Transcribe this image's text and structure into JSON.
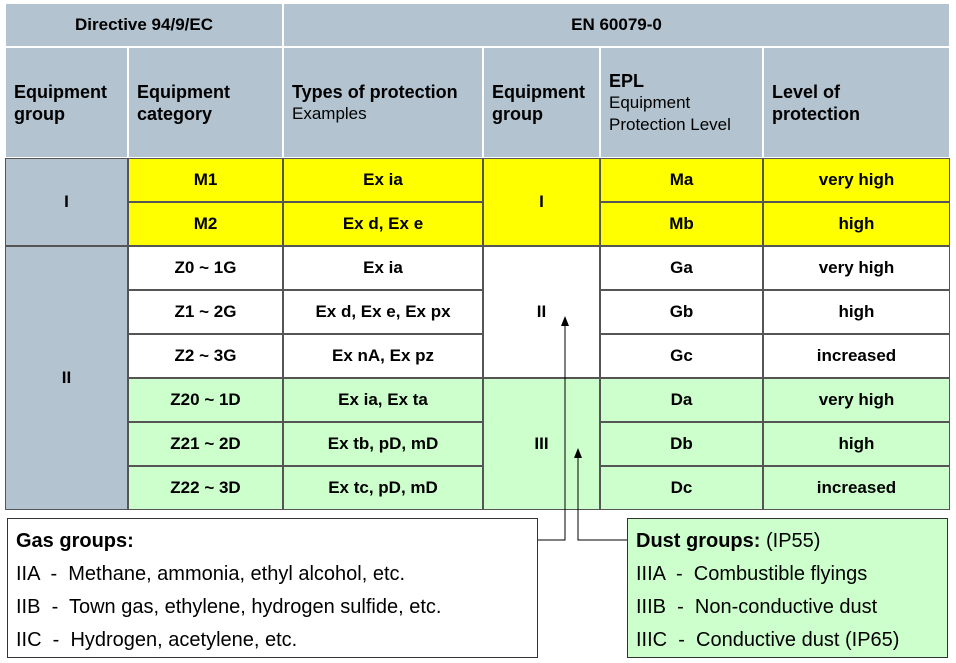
{
  "table": {
    "header_groups": [
      "Directive 94/9/EC",
      "EN 60079-0"
    ],
    "columns": [
      {
        "title": "Equipment group"
      },
      {
        "title": "Equipment category"
      },
      {
        "title": "Types of protection",
        "subtitle": "Examples"
      },
      {
        "title": "Equipment group"
      },
      {
        "title": "EPL",
        "subtitle": "Equipment Protection Level"
      },
      {
        "title": "Level of protection"
      }
    ],
    "equipment_groups": [
      "I",
      "II"
    ],
    "epl_groups": [
      "I",
      "II",
      "III"
    ],
    "rows": [
      [
        "M1",
        "Ex ia",
        "Ma",
        "very high"
      ],
      [
        "M2",
        "Ex d, Ex e",
        "Mb",
        "high"
      ],
      [
        "Z0 ~ 1G",
        "Ex ia",
        "Ga",
        "very high"
      ],
      [
        "Z1 ~ 2G",
        "Ex d, Ex e, Ex px",
        "Gb",
        "high"
      ],
      [
        "Z2 ~ 3G",
        "Ex nA, Ex pz",
        "Gc",
        "increased"
      ],
      [
        "Z20 ~ 1D",
        "Ex ia, Ex ta",
        "Da",
        "very high"
      ],
      [
        "Z21 ~ 2D",
        "Ex tb, pD, mD",
        "Db",
        "high"
      ],
      [
        "Z22 ~ 3D",
        "Ex tc, pD, mD",
        "Dc",
        "increased"
      ]
    ]
  },
  "gas_groups": {
    "title": "Gas groups:",
    "items": [
      "IIA  -  Methane, ammonia, ethyl alcohol, etc.",
      "IIB  -  Town gas, ethylene, hydrogen sulfide, etc.",
      "IIC  -  Hydrogen, acetylene, etc."
    ]
  },
  "dust_groups": {
    "title": "Dust groups:",
    "note": "(IP55)",
    "items": [
      "IIIA  -  Combustible flyings",
      "IIIB  -  Non-conductive dust",
      "IIIC  -  Conductive dust (IP65)"
    ]
  }
}
